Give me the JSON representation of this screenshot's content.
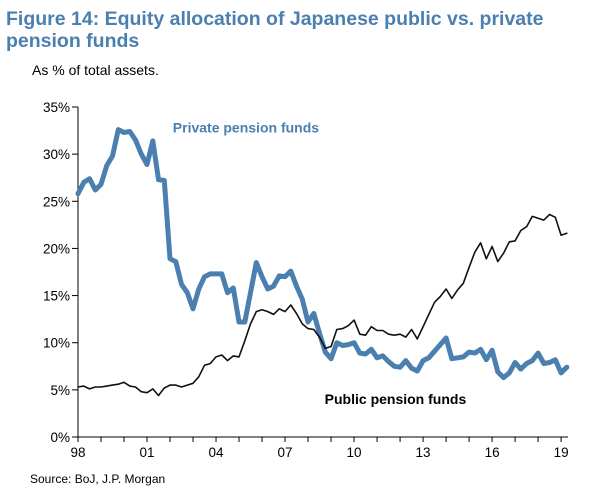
{
  "header": {
    "title": "Figure 14: Equity allocation of Japanese public vs. private pension funds",
    "subtitle": "As % of total assets."
  },
  "footer": {
    "source": "Source: BoJ, J.P. Morgan"
  },
  "colors": {
    "private": "#4a7fb0",
    "public": "#111111",
    "title": "#4a7fb0"
  },
  "chart_data": {
    "type": "line",
    "title": "Figure 14: Equity allocation of Japanese public vs. private pension funds",
    "subtitle": "As % of total assets.",
    "xlabel": "",
    "ylabel": "",
    "xlim": [
      1998.0,
      2019.3
    ],
    "ylim": [
      0,
      35
    ],
    "yticks": [
      0,
      5,
      10,
      15,
      20,
      25,
      30,
      35
    ],
    "ytick_labels": [
      "0%",
      "5%",
      "10%",
      "15%",
      "20%",
      "25%",
      "30%",
      "35%"
    ],
    "xticks": [
      1998,
      2001,
      2004,
      2007,
      2010,
      2013,
      2016,
      2019
    ],
    "xtick_labels": [
      "98",
      "01",
      "04",
      "07",
      "10",
      "13",
      "16",
      "19"
    ],
    "grid": false,
    "legend": "none",
    "annotations": [
      {
        "text": "Private pension funds",
        "series": "Private pension funds",
        "x": 2005.3,
        "y": 32.3
      },
      {
        "text": "Public pension funds",
        "series": "Public pension funds",
        "x": 2011.8,
        "y": 3.5
      }
    ],
    "series": [
      {
        "name": "Private pension funds",
        "color": "#4a7fb0",
        "x": [
          1998.0,
          1998.25,
          1998.5,
          1998.75,
          1999.0,
          1999.25,
          1999.5,
          1999.75,
          2000.0,
          2000.25,
          2000.5,
          2000.75,
          2001.0,
          2001.25,
          2001.5,
          2001.75,
          2002.0,
          2002.25,
          2002.5,
          2002.75,
          2003.0,
          2003.25,
          2003.5,
          2003.75,
          2004.0,
          2004.25,
          2004.5,
          2004.75,
          2005.0,
          2005.25,
          2005.5,
          2005.75,
          2006.0,
          2006.25,
          2006.5,
          2006.75,
          2007.0,
          2007.25,
          2007.5,
          2007.75,
          2008.0,
          2008.25,
          2008.5,
          2008.75,
          2009.0,
          2009.25,
          2009.5,
          2009.75,
          2010.0,
          2010.25,
          2010.5,
          2010.75,
          2011.0,
          2011.25,
          2011.5,
          2011.75,
          2012.0,
          2012.25,
          2012.5,
          2012.75,
          2013.0,
          2013.25,
          2013.5,
          2013.75,
          2014.0,
          2014.25,
          2014.5,
          2014.75,
          2015.0,
          2015.25,
          2015.5,
          2015.75,
          2016.0,
          2016.25,
          2016.5,
          2016.75,
          2017.0,
          2017.25,
          2017.5,
          2017.75,
          2018.0,
          2018.25,
          2018.5,
          2018.75,
          2019.0,
          2019.25
        ],
        "values": [
          25.8,
          27.0,
          27.4,
          26.2,
          26.8,
          28.8,
          29.8,
          32.6,
          32.3,
          32.4,
          31.5,
          30.0,
          28.9,
          31.4,
          27.3,
          27.2,
          18.9,
          18.6,
          16.2,
          15.3,
          13.6,
          15.7,
          17.0,
          17.3,
          17.3,
          17.3,
          15.3,
          15.8,
          12.2,
          12.2,
          15.3,
          18.5,
          17.0,
          15.7,
          16.0,
          17.1,
          17.0,
          17.6,
          16.0,
          14.6,
          12.2,
          13.1,
          11.0,
          9.0,
          8.3,
          10.0,
          9.7,
          9.8,
          10.0,
          8.9,
          8.8,
          9.3,
          8.4,
          8.6,
          8.0,
          7.5,
          7.4,
          8.1,
          7.3,
          7.0,
          8.1,
          8.4,
          9.1,
          9.8,
          10.5,
          8.3,
          8.4,
          8.5,
          9.0,
          8.9,
          9.3,
          8.2,
          9.2,
          6.9,
          6.3,
          6.8,
          7.9,
          7.2,
          7.8,
          8.1,
          8.9,
          7.8,
          7.9,
          8.2,
          6.8,
          7.4
        ]
      },
      {
        "name": "Public pension funds",
        "color": "#111111",
        "x": [
          1998.0,
          1998.25,
          1998.5,
          1998.75,
          1999.0,
          1999.25,
          1999.5,
          1999.75,
          2000.0,
          2000.25,
          2000.5,
          2000.75,
          2001.0,
          2001.25,
          2001.5,
          2001.75,
          2002.0,
          2002.25,
          2002.5,
          2002.75,
          2003.0,
          2003.25,
          2003.5,
          2003.75,
          2004.0,
          2004.25,
          2004.5,
          2004.75,
          2005.0,
          2005.25,
          2005.5,
          2005.75,
          2006.0,
          2006.25,
          2006.5,
          2006.75,
          2007.0,
          2007.25,
          2007.5,
          2007.75,
          2008.0,
          2008.25,
          2008.5,
          2008.75,
          2009.0,
          2009.25,
          2009.5,
          2009.75,
          2010.0,
          2010.25,
          2010.5,
          2010.75,
          2011.0,
          2011.25,
          2011.5,
          2011.75,
          2012.0,
          2012.25,
          2012.5,
          2012.75,
          2013.0,
          2013.25,
          2013.5,
          2013.75,
          2014.0,
          2014.25,
          2014.5,
          2014.75,
          2015.0,
          2015.25,
          2015.5,
          2015.75,
          2016.0,
          2016.25,
          2016.5,
          2016.75,
          2017.0,
          2017.25,
          2017.5,
          2017.75,
          2018.0,
          2018.25,
          2018.5,
          2018.75,
          2019.0,
          2019.25
        ],
        "values": [
          5.3,
          5.4,
          5.1,
          5.3,
          5.3,
          5.4,
          5.5,
          5.6,
          5.8,
          5.4,
          5.3,
          4.8,
          4.7,
          5.1,
          4.4,
          5.2,
          5.5,
          5.5,
          5.3,
          5.5,
          5.7,
          6.4,
          7.6,
          7.8,
          8.5,
          8.7,
          8.1,
          8.6,
          8.5,
          10.2,
          12.0,
          13.3,
          13.5,
          13.3,
          13.0,
          13.6,
          13.3,
          14.0,
          13.1,
          12.0,
          11.5,
          11.4,
          10.6,
          9.4,
          9.6,
          11.4,
          11.5,
          11.8,
          12.4,
          10.9,
          10.8,
          11.7,
          11.3,
          11.3,
          10.9,
          10.8,
          10.9,
          10.6,
          11.4,
          10.4,
          11.7,
          13.0,
          14.3,
          14.9,
          15.7,
          14.7,
          15.6,
          16.3,
          18.0,
          19.6,
          20.6,
          18.9,
          20.2,
          18.6,
          19.5,
          20.7,
          20.8,
          21.9,
          22.3,
          23.4,
          23.2,
          23.0,
          23.6,
          23.3,
          21.4,
          21.6
        ]
      }
    ]
  }
}
